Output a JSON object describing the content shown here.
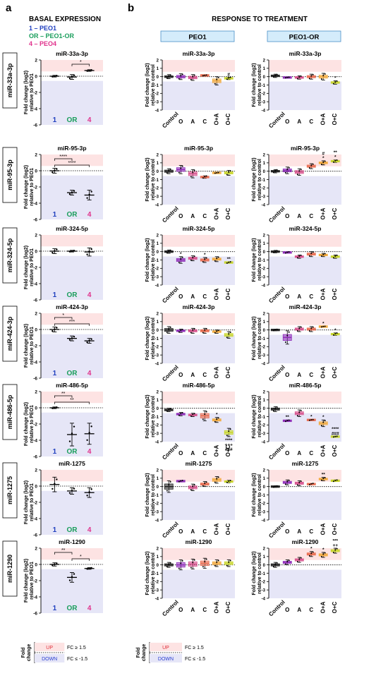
{
  "panel_a": {
    "letter": "a",
    "title": "BASAL EXPRESSION",
    "legend": [
      {
        "text": "1 – PEO1",
        "color": "#1f3fbf"
      },
      {
        "text": "OR – PEO1-OR",
        "color": "#1a9e5c"
      },
      {
        "text": "4 – PEO4",
        "color": "#e0328c"
      }
    ],
    "ylabel_1": "Fold change (log2)",
    "ylabel_2": "relative to PEO1"
  },
  "panel_b": {
    "letter": "b",
    "title": "RESPONSE TO TREATMENT",
    "col_headers": [
      "PEO1",
      "PEO1-OR"
    ],
    "ylabel_1": "Fold change (log2)",
    "ylabel_2": "relative to control"
  },
  "row_labels": [
    "miR-33a-3p",
    "miR-95-3p",
    "miR-324-5p",
    "miR-424-3p",
    "miR-486-5p",
    "miR-1275",
    "miR-1290"
  ],
  "footer": {
    "fold_label_1": "Fold",
    "fold_label_2": "change",
    "up_label": "UP",
    "down_label": "DOWN",
    "up_thresh": "FC ≥ 1.5",
    "down_thresh": "FC ≤ -1.5"
  },
  "colors": {
    "up_band": "#fde3e3",
    "down_band": "#e6e6f7",
    "header_bg": "#d4ecfb",
    "header_border": "#4a90c8",
    "basal_groups": [
      "#1f3fbf",
      "#1a9e5c",
      "#e0328c"
    ],
    "treat_groups": [
      "#222222",
      "#8e2bb8",
      "#d7508c",
      "#e96a4d",
      "#f2a93b",
      "#c8d62a"
    ]
  },
  "chart_data": [
    {
      "type": "scatter",
      "panel": "a",
      "ylim": [
        -6,
        2
      ],
      "yticks": [
        -6,
        -4,
        -2,
        0,
        2
      ],
      "x_groups": [
        "1",
        "OR",
        "4"
      ],
      "charts": [
        {
          "title": "miR-33a-3p",
          "means": [
            0.0,
            -0.1,
            0.7
          ],
          "sd": [
            0.1,
            0.3,
            0.1
          ],
          "sig": [
            {
              "a": 1,
              "b": 2,
              "t": "*"
            }
          ]
        },
        {
          "title": "miR-95-3p",
          "means": [
            0.0,
            -2.7,
            -3.0
          ],
          "sd": [
            0.3,
            0.3,
            0.6
          ],
          "sig": [
            {
              "a": 0,
              "b": 1,
              "t": "****"
            },
            {
              "a": 0,
              "b": 2,
              "t": "****"
            }
          ]
        },
        {
          "title": "miR-324-5p",
          "means": [
            0.0,
            0.0,
            -0.1
          ],
          "sd": [
            0.3,
            0.1,
            0.5
          ],
          "sig": []
        },
        {
          "title": "miR-424-3p",
          "means": [
            0.0,
            -1.1,
            -1.4
          ],
          "sd": [
            0.3,
            0.3,
            0.3
          ],
          "sig": [
            {
              "a": 0,
              "b": 1,
              "t": "*"
            },
            {
              "a": 0,
              "b": 2,
              "t": "***"
            }
          ]
        },
        {
          "title": "miR-486-5p",
          "means": [
            0.0,
            -3.3,
            -3.2
          ],
          "sd": [
            0.1,
            1.4,
            1.3
          ],
          "sig": [
            {
              "a": 0,
              "b": 1,
              "t": "**"
            },
            {
              "a": 0,
              "b": 2,
              "t": "**"
            }
          ]
        },
        {
          "title": "miR-1275",
          "means": [
            0.2,
            -0.6,
            -0.8
          ],
          "sd": [
            0.9,
            0.4,
            0.6
          ],
          "sig": []
        },
        {
          "title": "miR-1290",
          "means": [
            0.0,
            -1.6,
            -0.5
          ],
          "sd": [
            0.2,
            0.6,
            0.1
          ],
          "sig": [
            {
              "a": 0,
              "b": 1,
              "t": "**"
            },
            {
              "a": 1,
              "b": 2,
              "t": "*"
            }
          ]
        }
      ]
    },
    {
      "type": "box",
      "panel": "b",
      "ylim": [
        -4,
        2
      ],
      "yticks": [
        -4,
        -3,
        -2,
        -1,
        0,
        1,
        2
      ],
      "x_groups": [
        "Control",
        "O",
        "A",
        "C",
        "O+A",
        "O+C"
      ],
      "cells": [
        {
          "title": "miR-33a-3p",
          "line": "PEO1",
          "values": [
            0.0,
            0.0,
            -0.1,
            0.15,
            -0.5,
            -0.2
          ],
          "spread": [
            0.25,
            0.35,
            0.35,
            0.05,
            0.5,
            0.15
          ],
          "annot": [
            "",
            "",
            "",
            "",
            "",
            "#"
          ]
        },
        {
          "title": "miR-33a-3p",
          "line": "PEO1-OR",
          "values": [
            0.1,
            -0.1,
            -0.1,
            0.0,
            0.0,
            -0.7
          ],
          "spread": [
            0.2,
            0.05,
            0.2,
            0.3,
            0.4,
            0.2
          ],
          "annot": [
            "",
            "",
            "",
            "",
            "",
            "*"
          ]
        },
        {
          "title": "miR-95-3p",
          "line": "PEO1",
          "values": [
            0.0,
            0.2,
            -0.3,
            -0.7,
            -0.2,
            -0.2
          ],
          "spread": [
            0.3,
            0.5,
            0.5,
            0.15,
            0.05,
            0.3
          ],
          "annot": [
            "",
            "",
            "",
            "",
            "",
            ""
          ]
        },
        {
          "title": "miR-95-3p",
          "line": "PEO1-OR",
          "values": [
            0.0,
            0.1,
            -0.1,
            0.6,
            1.0,
            1.2
          ],
          "spread": [
            0.2,
            0.4,
            0.4,
            0.3,
            0.25,
            0.15
          ],
          "annot": [
            "",
            "",
            "",
            "",
            "#\n*",
            "**\n*"
          ]
        },
        {
          "title": "miR-324-5p",
          "line": "PEO1",
          "values": [
            0.0,
            -1.0,
            -0.8,
            -1.0,
            -0.9,
            -1.3
          ],
          "spread": [
            0.2,
            0.4,
            0.3,
            0.3,
            0.3,
            0.1
          ],
          "annot": [
            "",
            "*",
            "",
            "*",
            "",
            "**"
          ]
        },
        {
          "title": "miR-324-5p",
          "line": "PEO1-OR",
          "values": [
            0.0,
            -0.1,
            -0.6,
            -0.3,
            -0.4,
            -0.6
          ],
          "spread": [
            0.15,
            0.1,
            0.2,
            0.3,
            0.2,
            0.2
          ],
          "annot": [
            "",
            "",
            "",
            "",
            "",
            ""
          ]
        },
        {
          "title": "miR-424-3p",
          "line": "PEO1",
          "values": [
            0.0,
            -0.1,
            -0.1,
            -0.1,
            -0.2,
            -0.6
          ],
          "spread": [
            0.4,
            0.2,
            0.3,
            0.3,
            0.2,
            0.4
          ],
          "annot": [
            "",
            "",
            "",
            "",
            "",
            ""
          ]
        },
        {
          "title": "miR-424-3p",
          "line": "PEO1-OR",
          "values": [
            0.0,
            -0.9,
            0.1,
            0.1,
            0.4,
            -0.5
          ],
          "spread": [
            0.1,
            0.8,
            0.3,
            0.3,
            0.05,
            0.15
          ],
          "annot": [
            "",
            "",
            "",
            "",
            "*",
            "*"
          ]
        },
        {
          "title": "miR-486-5p",
          "line": "PEO1",
          "values": [
            -0.2,
            -0.7,
            -0.8,
            -0.9,
            -1.4,
            -2.9
          ],
          "spread": [
            0.2,
            0.2,
            0.2,
            0.6,
            0.3,
            0.5
          ],
          "annot": [
            "",
            "",
            "",
            "",
            "*",
            "****\n+++\n###"
          ]
        },
        {
          "title": "miR-486-5p",
          "line": "PEO1-OR",
          "values": [
            -0.1,
            -1.5,
            -0.6,
            -1.4,
            -1.8,
            -3.4
          ],
          "spread": [
            0.3,
            0.1,
            0.4,
            0.05,
            0.4,
            0.05
          ],
          "annot": [
            "",
            "**",
            "",
            "*",
            "*",
            "****\n###"
          ]
        },
        {
          "title": "miR-1275",
          "line": "PEO1",
          "values": [
            0.0,
            0.65,
            -0.1,
            0.3,
            0.8,
            0.6
          ],
          "spread": [
            0.7,
            0.1,
            0.4,
            0.3,
            0.4,
            0.15
          ],
          "annot": [
            "",
            "",
            "",
            "",
            "",
            ""
          ]
        },
        {
          "title": "miR-1275",
          "line": "PEO1-OR",
          "values": [
            0.0,
            0.5,
            0.4,
            0.3,
            0.9,
            0.7
          ],
          "spread": [
            0.1,
            0.3,
            0.3,
            0.1,
            0.2,
            0.1
          ],
          "annot": [
            "",
            "",
            "",
            "",
            "**",
            ""
          ]
        },
        {
          "title": "miR-1290",
          "line": "PEO1",
          "values": [
            0.0,
            0.0,
            0.1,
            0.2,
            0.2,
            0.2
          ],
          "spread": [
            0.3,
            0.6,
            0.6,
            0.6,
            0.4,
            0.4
          ],
          "annot": [
            "",
            "",
            "",
            "",
            "",
            ""
          ]
        },
        {
          "title": "miR-1290",
          "line": "PEO1-OR",
          "values": [
            0.0,
            0.3,
            0.6,
            1.3,
            1.2,
            1.7
          ],
          "spread": [
            0.3,
            0.3,
            0.3,
            0.3,
            0.3,
            0.3
          ],
          "annot": [
            "",
            "",
            "",
            "*",
            "*",
            "***\n++"
          ]
        }
      ]
    }
  ]
}
